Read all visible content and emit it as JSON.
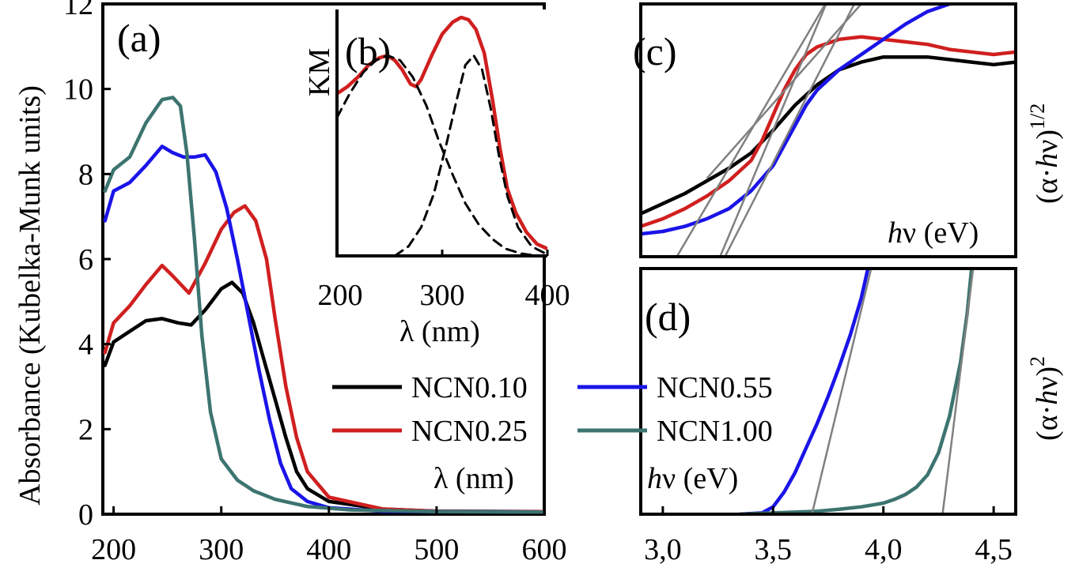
{
  "chart_data": [
    {
      "panel": "(a)",
      "type": "line",
      "xlabel": "λ (nm)",
      "ylabel": "Absorbance (Kubelka-Munk units)",
      "xlim": [
        190,
        600
      ],
      "ylim": [
        0,
        12
      ],
      "xticks": [
        200,
        300,
        400,
        500,
        600
      ],
      "yticks": [
        0,
        2,
        4,
        6,
        8,
        10,
        12
      ],
      "series": [
        {
          "name": "NCN0.10",
          "color": "#000000",
          "x": [
            192,
            200,
            215,
            230,
            245,
            260,
            272,
            285,
            300,
            310,
            320,
            330,
            340,
            350,
            360,
            370,
            380,
            400,
            450,
            500,
            600
          ],
          "y": [
            3.5,
            4.05,
            4.3,
            4.55,
            4.6,
            4.5,
            4.45,
            4.8,
            5.3,
            5.45,
            5.2,
            4.5,
            3.6,
            2.7,
            1.8,
            1.0,
            0.6,
            0.3,
            0.12,
            0.07,
            0.06
          ]
        },
        {
          "name": "NCN0.25",
          "color": "#d01f1f",
          "x": [
            192,
            200,
            215,
            230,
            245,
            255,
            270,
            285,
            300,
            312,
            322,
            332,
            342,
            350,
            360,
            370,
            380,
            400,
            450,
            500,
            600
          ],
          "y": [
            3.8,
            4.5,
            4.9,
            5.4,
            5.85,
            5.6,
            5.2,
            5.9,
            6.7,
            7.1,
            7.25,
            6.9,
            6.0,
            4.6,
            3.0,
            1.8,
            1.0,
            0.4,
            0.12,
            0.07,
            0.06
          ]
        },
        {
          "name": "NCN0.55",
          "color": "#1a14e8",
          "x": [
            192,
            200,
            215,
            230,
            245,
            255,
            265,
            275,
            285,
            295,
            305,
            315,
            325,
            335,
            345,
            355,
            365,
            380,
            400,
            450,
            600
          ],
          "y": [
            6.9,
            7.6,
            7.8,
            8.2,
            8.65,
            8.5,
            8.4,
            8.4,
            8.45,
            8.05,
            7.2,
            6.0,
            4.7,
            3.4,
            2.2,
            1.2,
            0.6,
            0.3,
            0.15,
            0.07,
            0.05
          ]
        },
        {
          "name": "NCN1.00",
          "color": "#3d7470",
          "x": [
            192,
            200,
            215,
            230,
            245,
            255,
            262,
            268,
            275,
            282,
            290,
            300,
            315,
            330,
            350,
            380,
            420,
            500,
            600
          ],
          "y": [
            7.6,
            8.1,
            8.4,
            9.2,
            9.75,
            9.8,
            9.6,
            8.5,
            6.5,
            4.2,
            2.4,
            1.3,
            0.8,
            0.55,
            0.35,
            0.18,
            0.1,
            0.06,
            0.05
          ]
        }
      ]
    },
    {
      "panel": "(b)",
      "type": "line",
      "xlabel": "λ (nm)",
      "ylabel": "KM",
      "xlim": [
        200,
        400
      ],
      "ylim": [
        0,
        1
      ],
      "xticks": [
        200,
        300,
        400
      ],
      "series": [
        {
          "color": "#d01f1f",
          "x": [
            200,
            210,
            220,
            230,
            240,
            248,
            255,
            262,
            270,
            275,
            280,
            290,
            300,
            310,
            318,
            325,
            332,
            340,
            348,
            355,
            362,
            370,
            380,
            390,
            400
          ],
          "y": [
            0.68,
            0.71,
            0.75,
            0.8,
            0.83,
            0.84,
            0.82,
            0.78,
            0.72,
            0.71,
            0.74,
            0.84,
            0.93,
            0.98,
            1.0,
            0.99,
            0.95,
            0.85,
            0.65,
            0.45,
            0.28,
            0.18,
            0.1,
            0.05,
            0.03
          ]
        },
        {
          "color": "#000000",
          "dashed": true,
          "x": [
            200,
            212,
            225,
            237,
            248,
            260,
            272,
            285,
            297,
            310,
            322,
            335,
            348,
            360,
            375,
            390
          ],
          "y": [
            0.58,
            0.68,
            0.77,
            0.82,
            0.84,
            0.82,
            0.75,
            0.63,
            0.48,
            0.34,
            0.22,
            0.13,
            0.07,
            0.03,
            0.01,
            0.0
          ]
        },
        {
          "color": "#000000",
          "dashed": true,
          "x": [
            255,
            268,
            280,
            292,
            303,
            313,
            322,
            330,
            338,
            346,
            354,
            362,
            372,
            385,
            398
          ],
          "y": [
            0.0,
            0.04,
            0.12,
            0.26,
            0.45,
            0.64,
            0.8,
            0.84,
            0.78,
            0.62,
            0.42,
            0.25,
            0.12,
            0.04,
            0.01
          ]
        }
      ]
    },
    {
      "panel": "(c)",
      "type": "line",
      "xlabel": "hν (eV)",
      "ylabel": "(α·hν)1/2",
      "xlim": [
        2.9,
        4.6
      ],
      "ylim": [
        0,
        1
      ],
      "series": [
        {
          "name": "NCN0.10",
          "color": "#000000",
          "x": [
            2.9,
            3.0,
            3.1,
            3.2,
            3.3,
            3.4,
            3.5,
            3.6,
            3.7,
            3.8,
            3.9,
            4.0,
            4.1,
            4.2,
            4.3,
            4.4,
            4.5,
            4.6
          ],
          "y": [
            0.17,
            0.21,
            0.25,
            0.3,
            0.35,
            0.41,
            0.5,
            0.6,
            0.68,
            0.74,
            0.77,
            0.79,
            0.79,
            0.79,
            0.78,
            0.77,
            0.76,
            0.77
          ]
        },
        {
          "name": "NCN0.25",
          "color": "#d01f1f",
          "x": [
            2.9,
            3.0,
            3.1,
            3.2,
            3.3,
            3.4,
            3.45,
            3.5,
            3.55,
            3.6,
            3.65,
            3.7,
            3.8,
            3.9,
            4.0,
            4.1,
            4.2,
            4.3,
            4.4,
            4.5,
            4.6
          ],
          "y": [
            0.12,
            0.15,
            0.19,
            0.24,
            0.3,
            0.38,
            0.46,
            0.56,
            0.66,
            0.74,
            0.8,
            0.83,
            0.86,
            0.87,
            0.86,
            0.85,
            0.84,
            0.82,
            0.81,
            0.8,
            0.81
          ]
        },
        {
          "name": "NCN0.55",
          "color": "#1a14e8",
          "x": [
            2.9,
            3.0,
            3.1,
            3.2,
            3.3,
            3.4,
            3.5,
            3.55,
            3.6,
            3.65,
            3.7,
            3.8,
            3.9,
            4.0,
            4.1,
            4.2,
            4.3
          ],
          "y": [
            0.09,
            0.1,
            0.12,
            0.15,
            0.19,
            0.26,
            0.36,
            0.44,
            0.52,
            0.6,
            0.66,
            0.74,
            0.8,
            0.86,
            0.92,
            0.97,
            1.0
          ]
        }
      ],
      "tangents": [
        {
          "x1": 3.05,
          "y1": -0.02,
          "x2": 3.75,
          "y2": 1.02
        },
        {
          "x1": 3.25,
          "y1": -0.02,
          "x2": 3.75,
          "y2": 1.02
        },
        {
          "x1": 3.27,
          "y1": -0.02,
          "x2": 3.88,
          "y2": 1.02
        },
        {
          "x1": 3.2,
          "y1": 0.31,
          "x2": 3.92,
          "y2": 1.02
        }
      ]
    },
    {
      "panel": "(d)",
      "type": "line",
      "xlabel": "hν (eV)",
      "ylabel": "(α·hν)2",
      "xlim": [
        2.9,
        4.6
      ],
      "ylim": [
        0,
        1
      ],
      "xticks": [
        "3,0",
        "3,5",
        "4,0",
        "4,5"
      ],
      "xtick_values": [
        3.0,
        3.5,
        4.0,
        4.5
      ],
      "series": [
        {
          "name": "NCN0.55",
          "color": "#1a14e8",
          "x": [
            3.35,
            3.45,
            3.5,
            3.55,
            3.6,
            3.65,
            3.7,
            3.75,
            3.8,
            3.85,
            3.9,
            3.93
          ],
          "y": [
            0.0,
            0.005,
            0.03,
            0.09,
            0.17,
            0.27,
            0.37,
            0.48,
            0.6,
            0.73,
            0.88,
            1.0
          ]
        },
        {
          "name": "NCN1.00",
          "color": "#3d7470",
          "x": [
            3.35,
            3.5,
            3.7,
            3.8,
            3.9,
            4.0,
            4.05,
            4.1,
            4.15,
            4.2,
            4.25,
            4.3,
            4.35,
            4.38,
            4.4
          ],
          "y": [
            0.0,
            0.005,
            0.012,
            0.02,
            0.03,
            0.045,
            0.06,
            0.08,
            0.11,
            0.16,
            0.25,
            0.4,
            0.62,
            0.82,
            1.0
          ]
        }
      ],
      "tangents": [
        {
          "x1": 3.66,
          "y1": -0.06,
          "x2": 3.95,
          "y2": 1.02
        },
        {
          "x1": 4.26,
          "y1": -0.06,
          "x2": 4.41,
          "y2": 1.02
        }
      ]
    }
  ],
  "legend": [
    {
      "label": "NCN0.10",
      "color": "#000000"
    },
    {
      "label": "NCN0.55",
      "color": "#1a14e8"
    },
    {
      "label": "NCN0.25",
      "color": "#d01f1f"
    },
    {
      "label": "NCN1.00",
      "color": "#3d7470"
    }
  ],
  "labels": {
    "a_panel": "(a)",
    "a_xlabel": "λ (nm)",
    "a_ylabel": "Absorbance (Kubelka-Munk units)",
    "b_panel": "(b)",
    "b_ylabel": "KM",
    "b_xlabel": "λ (nm)",
    "c_panel": "(c)",
    "c_xlabel_h": "h",
    "c_xlabel_rest": "ν (eV)",
    "c_ylabel_pre": "(α·",
    "c_ylabel_h": "h",
    "c_ylabel_post": "ν)",
    "c_ylabel_exp": "1/2",
    "d_panel": "(d)",
    "d_xlabel_h": "h",
    "d_xlabel_rest": "ν (eV)",
    "d_ylabel_pre": "(α·",
    "d_ylabel_h": "h",
    "d_ylabel_post": "ν)",
    "d_ylabel_exp": "2"
  }
}
